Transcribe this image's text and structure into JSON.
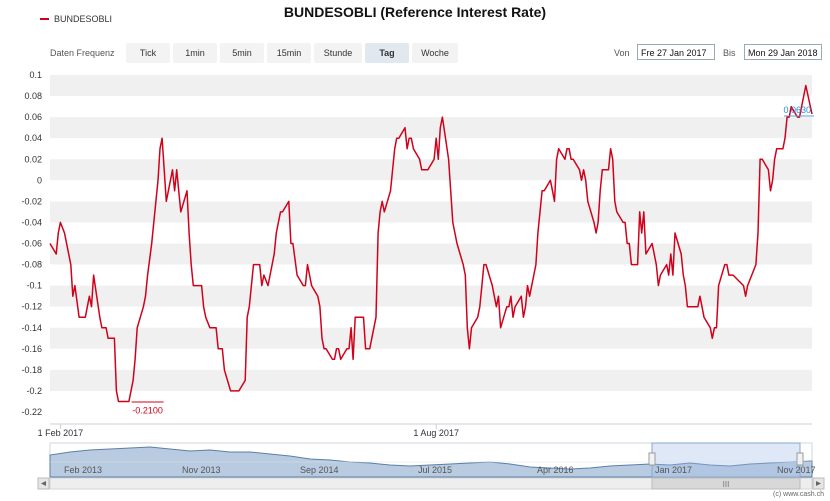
{
  "title": "BUNDESOBLI (Reference Interest Rate)",
  "legend": {
    "label": "BUNDESOBLI",
    "color": "#d0021b"
  },
  "toolbar": {
    "frequency_label": "Daten Frequenz",
    "buttons": [
      "Tick",
      "1min",
      "5min",
      "15min",
      "Stunde",
      "Tag",
      "Woche"
    ],
    "active": "Tag",
    "from_label": "Von",
    "from_value": "Fre 27 Jan 2017",
    "to_label": "Bis",
    "to_value": "Mon 29 Jan 2018"
  },
  "copyright": "(c) www.cash.ch",
  "navigator": {
    "labels": [
      "Feb 2013",
      "Nov 2013",
      "Sep 2014",
      "Jul 2015",
      "Apr 2016",
      "Jan 2017",
      "Nov 2017"
    ]
  },
  "chart_data": {
    "type": "line",
    "title": "BUNDESOBLI (Reference Interest Rate)",
    "xlabel": "",
    "ylabel": "",
    "ylim": [
      -0.22,
      0.1
    ],
    "yticks": [
      0.1,
      0.08,
      0.06,
      0.04,
      0.02,
      0,
      -0.02,
      -0.04,
      -0.06,
      -0.08,
      -0.1,
      -0.12,
      -0.14,
      -0.16,
      -0.18,
      -0.2,
      -0.22
    ],
    "ytick_labels": [
      "0.1",
      "0.08",
      "0.06",
      "0.04",
      "0.02",
      "0",
      "-0.02",
      "-0.04",
      "-0.06",
      "-0.08",
      "-0.1",
      "-0.12",
      "-0.14",
      "-0.16",
      "-0.18",
      "-0.2",
      "-0.22"
    ],
    "xticks": [
      {
        "label": "1 Feb 2017",
        "date": "2017-02-01"
      },
      {
        "label": "1 Aug 2017",
        "date": "2017-08-01"
      }
    ],
    "xrange": [
      "2017-01-27",
      "2018-01-29"
    ],
    "grid": true,
    "legend_position": "top-left",
    "annotations": [
      {
        "text": "-0.2100",
        "date": "2017-03-15",
        "value": -0.21
      },
      {
        "text": "0.0630",
        "date": "2018-01-26",
        "value": 0.063
      }
    ],
    "series": [
      {
        "name": "BUNDESOBLI",
        "color": "#d0021b",
        "points": [
          [
            "2017-01-27",
            -0.06
          ],
          [
            "2017-01-30",
            -0.07
          ],
          [
            "2017-01-31",
            -0.05
          ],
          [
            "2017-02-01",
            -0.04
          ],
          [
            "2017-02-03",
            -0.05
          ],
          [
            "2017-02-06",
            -0.08
          ],
          [
            "2017-02-07",
            -0.11
          ],
          [
            "2017-02-08",
            -0.1
          ],
          [
            "2017-02-10",
            -0.13
          ],
          [
            "2017-02-13",
            -0.13
          ],
          [
            "2017-02-15",
            -0.11
          ],
          [
            "2017-02-16",
            -0.12
          ],
          [
            "2017-02-17",
            -0.09
          ],
          [
            "2017-02-20",
            -0.13
          ],
          [
            "2017-02-21",
            -0.14
          ],
          [
            "2017-02-23",
            -0.14
          ],
          [
            "2017-02-24",
            -0.15
          ],
          [
            "2017-02-27",
            -0.15
          ],
          [
            "2017-02-28",
            -0.2
          ],
          [
            "2017-03-01",
            -0.21
          ],
          [
            "2017-03-03",
            -0.21
          ],
          [
            "2017-03-06",
            -0.21
          ],
          [
            "2017-03-08",
            -0.19
          ],
          [
            "2017-03-09",
            -0.17
          ],
          [
            "2017-03-10",
            -0.14
          ],
          [
            "2017-03-13",
            -0.12
          ],
          [
            "2017-03-14",
            -0.11
          ],
          [
            "2017-03-15",
            -0.09
          ],
          [
            "2017-03-17",
            -0.06
          ],
          [
            "2017-03-20",
            0.0
          ],
          [
            "2017-03-21",
            0.03
          ],
          [
            "2017-03-22",
            0.04
          ],
          [
            "2017-03-23",
            0.01
          ],
          [
            "2017-03-24",
            -0.02
          ],
          [
            "2017-03-27",
            0.01
          ],
          [
            "2017-03-28",
            -0.01
          ],
          [
            "2017-03-29",
            0.01
          ],
          [
            "2017-03-31",
            -0.03
          ],
          [
            "2017-04-03",
            -0.01
          ],
          [
            "2017-04-04",
            -0.05
          ],
          [
            "2017-04-05",
            -0.08
          ],
          [
            "2017-04-06",
            -0.1
          ],
          [
            "2017-04-10",
            -0.1
          ],
          [
            "2017-04-11",
            -0.12
          ],
          [
            "2017-04-12",
            -0.13
          ],
          [
            "2017-04-14",
            -0.14
          ],
          [
            "2017-04-17",
            -0.14
          ],
          [
            "2017-04-18",
            -0.16
          ],
          [
            "2017-04-20",
            -0.16
          ],
          [
            "2017-04-21",
            -0.18
          ],
          [
            "2017-04-24",
            -0.2
          ],
          [
            "2017-04-26",
            -0.2
          ],
          [
            "2017-04-28",
            -0.2
          ],
          [
            "2017-05-01",
            -0.19
          ],
          [
            "2017-05-02",
            -0.13
          ],
          [
            "2017-05-03",
            -0.12
          ],
          [
            "2017-05-04",
            -0.1
          ],
          [
            "2017-05-05",
            -0.08
          ],
          [
            "2017-05-08",
            -0.08
          ],
          [
            "2017-05-09",
            -0.1
          ],
          [
            "2017-05-10",
            -0.09
          ],
          [
            "2017-05-12",
            -0.1
          ],
          [
            "2017-05-15",
            -0.07
          ],
          [
            "2017-05-16",
            -0.05
          ],
          [
            "2017-05-17",
            -0.04
          ],
          [
            "2017-05-18",
            -0.03
          ],
          [
            "2017-05-19",
            -0.03
          ],
          [
            "2017-05-22",
            -0.02
          ],
          [
            "2017-05-23",
            -0.06
          ],
          [
            "2017-05-24",
            -0.06
          ],
          [
            "2017-05-26",
            -0.09
          ],
          [
            "2017-05-29",
            -0.1
          ],
          [
            "2017-05-30",
            -0.1
          ],
          [
            "2017-05-31",
            -0.08
          ],
          [
            "2017-06-02",
            -0.1
          ],
          [
            "2017-06-05",
            -0.11
          ],
          [
            "2017-06-06",
            -0.12
          ],
          [
            "2017-06-07",
            -0.15
          ],
          [
            "2017-06-08",
            -0.16
          ],
          [
            "2017-06-09",
            -0.16
          ],
          [
            "2017-06-12",
            -0.17
          ],
          [
            "2017-06-13",
            -0.17
          ],
          [
            "2017-06-14",
            -0.16
          ],
          [
            "2017-06-15",
            -0.16
          ],
          [
            "2017-06-16",
            -0.17
          ],
          [
            "2017-06-19",
            -0.16
          ],
          [
            "2017-06-20",
            -0.16
          ],
          [
            "2017-06-21",
            -0.14
          ],
          [
            "2017-06-22",
            -0.17
          ],
          [
            "2017-06-23",
            -0.13
          ],
          [
            "2017-06-26",
            -0.13
          ],
          [
            "2017-06-27",
            -0.13
          ],
          [
            "2017-06-28",
            -0.16
          ],
          [
            "2017-06-29",
            -0.16
          ],
          [
            "2017-06-30",
            -0.16
          ],
          [
            "2017-07-03",
            -0.13
          ],
          [
            "2017-07-04",
            -0.05
          ],
          [
            "2017-07-05",
            -0.03
          ],
          [
            "2017-07-06",
            -0.02
          ],
          [
            "2017-07-07",
            -0.03
          ],
          [
            "2017-07-10",
            -0.01
          ],
          [
            "2017-07-11",
            0.01
          ],
          [
            "2017-07-12",
            0.03
          ],
          [
            "2017-07-13",
            0.04
          ],
          [
            "2017-07-14",
            0.04
          ],
          [
            "2017-07-17",
            0.05
          ],
          [
            "2017-07-18",
            0.03
          ],
          [
            "2017-07-19",
            0.04
          ],
          [
            "2017-07-20",
            0.04
          ],
          [
            "2017-07-21",
            0.03
          ],
          [
            "2017-07-24",
            0.02
          ],
          [
            "2017-07-25",
            0.01
          ],
          [
            "2017-07-26",
            0.01
          ],
          [
            "2017-07-28",
            0.01
          ],
          [
            "2017-07-31",
            0.02
          ],
          [
            "2017-08-01",
            0.04
          ],
          [
            "2017-08-02",
            0.02
          ],
          [
            "2017-08-03",
            0.05
          ],
          [
            "2017-08-04",
            0.06
          ],
          [
            "2017-08-07",
            0.02
          ],
          [
            "2017-08-08",
            -0.01
          ],
          [
            "2017-08-09",
            -0.04
          ],
          [
            "2017-08-10",
            -0.05
          ],
          [
            "2017-08-11",
            -0.06
          ],
          [
            "2017-08-14",
            -0.08
          ],
          [
            "2017-08-15",
            -0.09
          ],
          [
            "2017-08-16",
            -0.14
          ],
          [
            "2017-08-17",
            -0.16
          ],
          [
            "2017-08-18",
            -0.14
          ],
          [
            "2017-08-21",
            -0.13
          ],
          [
            "2017-08-22",
            -0.12
          ],
          [
            "2017-08-23",
            -0.1
          ],
          [
            "2017-08-24",
            -0.08
          ],
          [
            "2017-08-25",
            -0.08
          ],
          [
            "2017-08-28",
            -0.1
          ],
          [
            "2017-08-29",
            -0.11
          ],
          [
            "2017-08-30",
            -0.12
          ],
          [
            "2017-08-31",
            -0.11
          ],
          [
            "2017-09-01",
            -0.14
          ],
          [
            "2017-09-04",
            -0.12
          ],
          [
            "2017-09-05",
            -0.12
          ],
          [
            "2017-09-06",
            -0.11
          ],
          [
            "2017-09-07",
            -0.13
          ],
          [
            "2017-09-08",
            -0.12
          ],
          [
            "2017-09-11",
            -0.11
          ],
          [
            "2017-09-12",
            -0.13
          ],
          [
            "2017-09-13",
            -0.12
          ],
          [
            "2017-09-14",
            -0.1
          ],
          [
            "2017-09-15",
            -0.11
          ],
          [
            "2017-09-18",
            -0.08
          ],
          [
            "2017-09-19",
            -0.05
          ],
          [
            "2017-09-20",
            -0.03
          ],
          [
            "2017-09-21",
            -0.01
          ],
          [
            "2017-09-22",
            -0.01
          ],
          [
            "2017-09-25",
            0.0
          ],
          [
            "2017-09-26",
            -0.01
          ],
          [
            "2017-09-27",
            -0.02
          ],
          [
            "2017-09-28",
            0.02
          ],
          [
            "2017-09-29",
            0.03
          ],
          [
            "2017-10-02",
            0.02
          ],
          [
            "2017-10-03",
            0.03
          ],
          [
            "2017-10-04",
            0.03
          ],
          [
            "2017-10-05",
            0.02
          ],
          [
            "2017-10-06",
            0.02
          ],
          [
            "2017-10-09",
            0.01
          ],
          [
            "2017-10-10",
            0.0
          ],
          [
            "2017-10-11",
            0.01
          ],
          [
            "2017-10-12",
            0.0
          ],
          [
            "2017-10-13",
            -0.02
          ],
          [
            "2017-10-16",
            -0.04
          ],
          [
            "2017-10-17",
            -0.05
          ],
          [
            "2017-10-18",
            -0.04
          ],
          [
            "2017-10-19",
            -0.01
          ],
          [
            "2017-10-20",
            0.01
          ],
          [
            "2017-10-23",
            0.01
          ],
          [
            "2017-10-24",
            0.03
          ],
          [
            "2017-10-25",
            0.02
          ],
          [
            "2017-10-26",
            -0.02
          ],
          [
            "2017-10-27",
            -0.03
          ],
          [
            "2017-10-30",
            -0.04
          ],
          [
            "2017-10-31",
            -0.04
          ],
          [
            "2017-11-01",
            -0.06
          ],
          [
            "2017-11-02",
            -0.06
          ],
          [
            "2017-11-03",
            -0.08
          ],
          [
            "2017-11-06",
            -0.08
          ],
          [
            "2017-11-07",
            -0.03
          ],
          [
            "2017-11-08",
            -0.05
          ],
          [
            "2017-11-09",
            -0.03
          ],
          [
            "2017-11-10",
            -0.07
          ],
          [
            "2017-11-13",
            -0.06
          ],
          [
            "2017-11-14",
            -0.07
          ],
          [
            "2017-11-15",
            -0.08
          ],
          [
            "2017-11-16",
            -0.1
          ],
          [
            "2017-11-17",
            -0.09
          ],
          [
            "2017-11-20",
            -0.08
          ],
          [
            "2017-11-21",
            -0.09
          ],
          [
            "2017-11-22",
            -0.07
          ],
          [
            "2017-11-23",
            -0.09
          ],
          [
            "2017-11-24",
            -0.05
          ],
          [
            "2017-11-27",
            -0.07
          ],
          [
            "2017-11-28",
            -0.09
          ],
          [
            "2017-11-29",
            -0.1
          ],
          [
            "2017-11-30",
            -0.12
          ],
          [
            "2017-12-01",
            -0.12
          ],
          [
            "2017-12-04",
            -0.12
          ],
          [
            "2017-12-05",
            -0.12
          ],
          [
            "2017-12-06",
            -0.11
          ],
          [
            "2017-12-07",
            -0.12
          ],
          [
            "2017-12-08",
            -0.13
          ],
          [
            "2017-12-11",
            -0.14
          ],
          [
            "2017-12-12",
            -0.15
          ],
          [
            "2017-12-13",
            -0.14
          ],
          [
            "2017-12-14",
            -0.14
          ],
          [
            "2017-12-15",
            -0.1
          ],
          [
            "2017-12-18",
            -0.08
          ],
          [
            "2017-12-19",
            -0.08
          ],
          [
            "2017-12-20",
            -0.09
          ],
          [
            "2017-12-21",
            -0.09
          ],
          [
            "2017-12-22",
            -0.09
          ],
          [
            "2017-12-27",
            -0.1
          ],
          [
            "2017-12-28",
            -0.11
          ],
          [
            "2017-12-29",
            -0.1
          ],
          [
            "2018-01-02",
            -0.08
          ],
          [
            "2018-01-03",
            -0.05
          ],
          [
            "2018-01-04",
            0.02
          ],
          [
            "2018-01-05",
            0.02
          ],
          [
            "2018-01-08",
            0.01
          ],
          [
            "2018-01-09",
            -0.01
          ],
          [
            "2018-01-10",
            0.0
          ],
          [
            "2018-01-11",
            0.02
          ],
          [
            "2018-01-12",
            0.03
          ],
          [
            "2018-01-15",
            0.03
          ],
          [
            "2018-01-16",
            0.04
          ],
          [
            "2018-01-17",
            0.06
          ],
          [
            "2018-01-18",
            0.06
          ],
          [
            "2018-01-19",
            0.07
          ],
          [
            "2018-01-22",
            0.06
          ],
          [
            "2018-01-23",
            0.06
          ],
          [
            "2018-01-24",
            0.07
          ],
          [
            "2018-01-25",
            0.08
          ],
          [
            "2018-01-26",
            0.09
          ],
          [
            "2018-01-29",
            0.063
          ]
        ]
      }
    ]
  }
}
